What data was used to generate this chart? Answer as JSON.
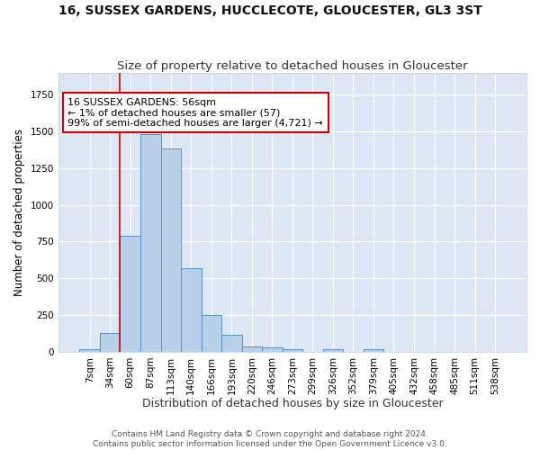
{
  "title": "16, SUSSEX GARDENS, HUCCLECOTE, GLOUCESTER, GL3 3ST",
  "subtitle": "Size of property relative to detached houses in Gloucester",
  "xlabel": "Distribution of detached houses by size in Gloucester",
  "ylabel": "Number of detached properties",
  "bar_values": [
    15,
    130,
    790,
    1480,
    1385,
    570,
    250,
    115,
    35,
    30,
    20,
    0,
    18,
    0,
    20,
    0,
    0,
    0,
    0,
    0,
    0
  ],
  "bin_labels": [
    "7sqm",
    "34sqm",
    "60sqm",
    "87sqm",
    "113sqm",
    "140sqm",
    "166sqm",
    "193sqm",
    "220sqm",
    "246sqm",
    "273sqm",
    "299sqm",
    "326sqm",
    "352sqm",
    "379sqm",
    "405sqm",
    "432sqm",
    "458sqm",
    "485sqm",
    "511sqm",
    "538sqm"
  ],
  "bar_color": "#b8d0e8",
  "bar_edge_color": "#5b8fc9",
  "ylim": [
    0,
    1900
  ],
  "vline_color": "#cc0000",
  "annotation_text": "16 SUSSEX GARDENS: 56sqm\n← 1% of detached houses are smaller (57)\n99% of semi-detached houses are larger (4,721) →",
  "annotation_box_color": "#ffffff",
  "annotation_box_edge_color": "#cc0000",
  "footer_line1": "Contains HM Land Registry data © Crown copyright and database right 2024.",
  "footer_line2": "Contains public sector information licensed under the Open Government Licence v3.0.",
  "background_color": "#dce6f5",
  "fig_background_color": "#ffffff",
  "title_fontsize": 10,
  "subtitle_fontsize": 9.5,
  "tick_fontsize": 7.5,
  "ylabel_fontsize": 8.5,
  "xlabel_fontsize": 9,
  "footer_fontsize": 6.5,
  "annotation_fontsize": 8
}
